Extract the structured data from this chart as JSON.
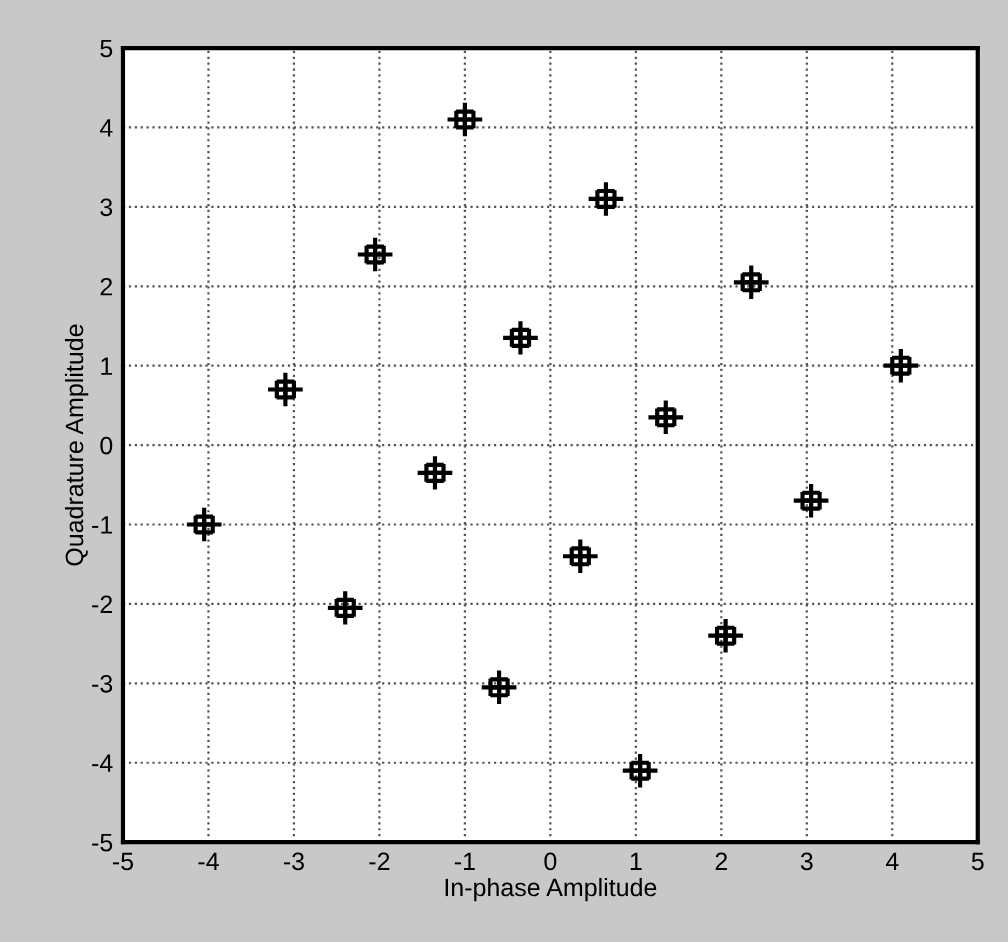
{
  "chart_data": {
    "type": "scatter",
    "xlabel": "In-phase Amplitude",
    "ylabel": "Quadrature Amplitude",
    "series": [
      {
        "color": "#000000",
        "x": [
          -1.0,
          -1.1,
          -0.9,
          -1.0,
          -1.0,
          -2.05,
          -2.15,
          -1.95,
          -2.05,
          -2.05,
          -0.35,
          -0.45,
          -0.25,
          -0.35,
          -0.35,
          -3.1,
          -3.2,
          -3.0,
          -3.1,
          -3.1,
          -1.35,
          -1.45,
          -1.25,
          -1.35,
          -1.35,
          0.65,
          0.55,
          0.75,
          0.65,
          0.65,
          2.35,
          2.25,
          2.45,
          2.35,
          2.35,
          4.1,
          4.0,
          4.2,
          4.1,
          4.1,
          1.35,
          1.25,
          1.45,
          1.35,
          1.35,
          -4.05,
          -4.15,
          -3.95,
          -4.05,
          -4.05,
          -2.4,
          -2.5,
          -2.3,
          -2.4,
          -2.4,
          -0.6,
          -0.7,
          -0.5,
          -0.6,
          -0.6,
          3.05,
          2.95,
          3.15,
          3.05,
          3.05,
          0.35,
          0.25,
          0.45,
          0.35,
          0.35,
          2.05,
          1.95,
          2.15,
          2.05,
          2.05,
          1.05,
          0.95,
          1.15,
          1.05,
          1.05
        ],
        "values": [
          4.1,
          4.1,
          4.1,
          4.0,
          4.2,
          2.4,
          2.4,
          2.4,
          2.3,
          2.5,
          1.35,
          1.35,
          1.35,
          1.25,
          1.45,
          0.7,
          0.7,
          0.7,
          0.6,
          0.8,
          -0.35,
          -0.35,
          -0.35,
          -0.45,
          -0.25,
          3.1,
          3.1,
          3.1,
          3.0,
          3.2,
          2.05,
          2.05,
          2.05,
          1.95,
          2.15,
          1.0,
          1.0,
          1.0,
          0.9,
          1.1,
          0.35,
          0.35,
          0.35,
          0.25,
          0.45,
          -1.0,
          -1.0,
          -1.0,
          -1.1,
          -0.9,
          -2.05,
          -2.05,
          -2.05,
          -2.15,
          -1.95,
          -3.05,
          -3.05,
          -3.05,
          -3.15,
          -2.95,
          -0.7,
          -0.7,
          -0.7,
          -0.8,
          -0.6,
          -1.4,
          -1.4,
          -1.4,
          -1.5,
          -1.3,
          -2.4,
          -2.4,
          -2.4,
          -2.5,
          -2.3,
          -4.1,
          -4.1,
          -4.1,
          -4.2,
          -4.0
        ]
      }
    ],
    "xlim": [
      -5,
      5
    ],
    "ylim": [
      -5,
      5
    ],
    "xticks": [
      -5,
      -4,
      -3,
      -2,
      -1,
      0,
      1,
      2,
      3,
      4,
      5
    ],
    "yticks": [
      -5,
      -4,
      -3,
      -2,
      -1,
      0,
      1,
      2,
      3,
      4,
      5
    ],
    "grid": true,
    "marker": "cross",
    "legend": false
  }
}
